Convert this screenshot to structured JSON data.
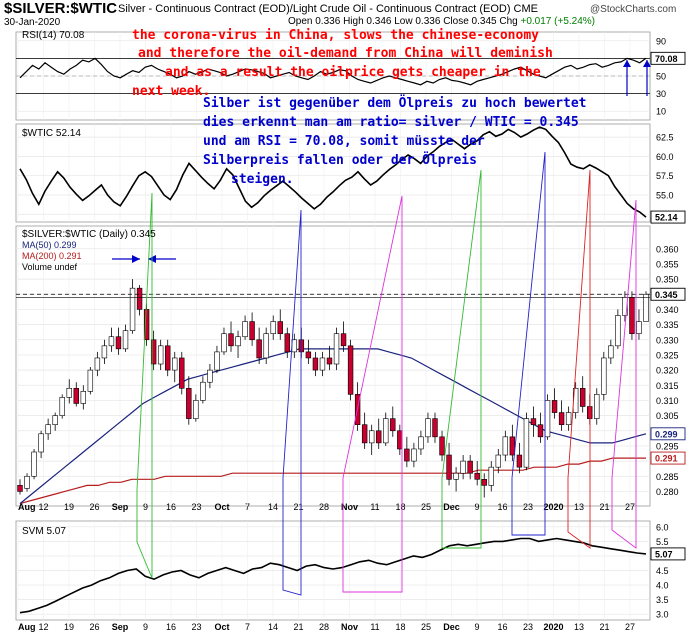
{
  "header": {
    "symbol": "$SILVER:$WTIC",
    "description": "Silver - Continuous Contract (EOD)/Light Crude Oil - Continuous Contract (EOD)  CME",
    "date": "30-Jan-2020",
    "open_label": "Open",
    "open": "0.336",
    "high_label": "High",
    "high": "0.346",
    "low_label": "Low",
    "low": "0.336",
    "close_label": "Close",
    "close": "0.345",
    "chg_label": "Chg",
    "chg": "+0.017 (+5.24%)",
    "chg_arrow": "▲",
    "brand": "@StockCharts.com"
  },
  "annotations": {
    "red": [
      "the corona-virus in China, slows the chinese-economy",
      "and therefore the oil-demand from China will deminish",
      "and as a result the oilprice gets cheaper in the",
      "next week."
    ],
    "blue": [
      "Silber ist gegenüber dem Ölpreis zu hoch bewertet",
      "dies erkennt man am ratio= silver / WTIC = 0.345",
      "und am RSI = 70.08, somit müsste der",
      "Silberpreis fallen oder der Ölpreis",
      "steigen."
    ]
  },
  "colors": {
    "red_text": "#ff0000",
    "blue_text": "#0000cc",
    "up_candle": "#ffffff",
    "down_candle": "#c8002e",
    "ma50": "#1a237e",
    "ma200": "#b71c1c",
    "green_line": "#33bb33",
    "blue_line": "#2222cc",
    "magenta_line": "#dd33dd",
    "red_line": "#dd2222"
  },
  "chart_data": [
    {
      "type": "line",
      "name": "rsi-panel",
      "legend": "RSI(14) 70.08",
      "ylim": [
        0,
        100
      ],
      "ticks": [
        10,
        30,
        50,
        70,
        90
      ],
      "last_label": "70.08",
      "values": [
        48,
        55,
        62,
        58,
        65,
        60,
        55,
        52,
        58,
        62,
        68,
        66,
        70,
        63,
        55,
        50,
        48,
        52,
        56,
        54,
        60,
        62,
        58,
        55,
        52,
        48,
        50,
        55,
        52,
        54,
        58,
        56,
        54,
        50,
        52,
        55,
        58,
        57,
        55,
        53,
        48,
        50,
        52,
        54,
        50,
        48,
        46,
        50,
        55,
        52,
        54,
        57,
        56,
        50,
        46,
        44,
        42,
        45,
        48,
        50,
        48,
        46,
        44,
        42,
        40,
        44,
        42,
        46,
        48,
        45,
        44,
        42,
        40,
        44,
        46,
        48,
        50,
        52,
        55,
        58,
        60,
        56,
        52,
        50,
        48,
        52,
        56,
        60,
        62,
        58,
        60,
        63,
        64,
        60,
        62,
        65,
        66,
        70,
        68,
        65,
        70.08
      ]
    },
    {
      "type": "line",
      "name": "wtic-panel",
      "legend": "$WTIC 52.14",
      "ylim": [
        51.5,
        64.2
      ],
      "ticks": [
        52.5,
        55.0,
        57.5,
        60.0,
        62.5
      ],
      "last_label": "52.14",
      "values": [
        58.4,
        57.0,
        55.2,
        53.8,
        55.5,
        56.8,
        58.0,
        57.2,
        56.0,
        55.1,
        54.3,
        54.9,
        55.6,
        56.3,
        55.0,
        54.1,
        53.6,
        54.8,
        56.2,
        57.5,
        58.0,
        57.4,
        56.2,
        55.0,
        54.4,
        55.7,
        57.6,
        59.1,
        58.2,
        57.3,
        56.5,
        55.8,
        56.9,
        58.4,
        57.6,
        55.9,
        54.2,
        53.4,
        54.0,
        54.9,
        55.6,
        56.2,
        56.8,
        56.1,
        55.4,
        54.6,
        53.9,
        53.2,
        53.8,
        54.7,
        55.4,
        56.2,
        56.9,
        57.3,
        58.0,
        57.1,
        56.3,
        56.8,
        57.6,
        58.3,
        58.9,
        59.6,
        60.2,
        59.7,
        59.1,
        60.0,
        60.6,
        61.3,
        61.8,
        62.2,
        61.6,
        61.0,
        61.6,
        62.0,
        62.8,
        63.2,
        62.6,
        62.9,
        63.5,
        63.1,
        62.5,
        62.9,
        63.4,
        63.8,
        63.5,
        62.6,
        61.8,
        60.5,
        59.0,
        58.6,
        58.4,
        58.9,
        58.5,
        58.0,
        57.5,
        56.1,
        55.0,
        53.9,
        53.2,
        52.8,
        52.14
      ]
    },
    {
      "type": "candlestick",
      "name": "ratio-panel",
      "legend": [
        "$SILVER:$WTIC (Daily) 0.345",
        "MA(50) 0.299",
        "MA(200) 0.291",
        "Volume undef"
      ],
      "ylim": [
        0.2752,
        0.3675
      ],
      "ticks": [
        0.28,
        0.285,
        0.29,
        0.295,
        0.3,
        0.305,
        0.31,
        0.315,
        0.32,
        0.325,
        0.33,
        0.335,
        0.34,
        0.345,
        0.35,
        0.355,
        0.36
      ],
      "last_label": "0.345",
      "ma50_label": "0.299",
      "ma200_label": "0.291",
      "ohlc": [
        [
          0.282,
          0.284,
          0.279,
          0.28
        ],
        [
          0.281,
          0.286,
          0.28,
          0.285
        ],
        [
          0.285,
          0.294,
          0.284,
          0.293
        ],
        [
          0.293,
          0.3,
          0.291,
          0.299
        ],
        [
          0.299,
          0.304,
          0.297,
          0.302
        ],
        [
          0.302,
          0.306,
          0.3,
          0.305
        ],
        [
          0.305,
          0.312,
          0.304,
          0.311
        ],
        [
          0.311,
          0.317,
          0.309,
          0.314
        ],
        [
          0.314,
          0.316,
          0.308,
          0.309
        ],
        [
          0.309,
          0.315,
          0.307,
          0.313
        ],
        [
          0.313,
          0.321,
          0.312,
          0.32
        ],
        [
          0.32,
          0.326,
          0.318,
          0.324
        ],
        [
          0.324,
          0.33,
          0.322,
          0.328
        ],
        [
          0.328,
          0.334,
          0.326,
          0.331
        ],
        [
          0.331,
          0.334,
          0.325,
          0.327
        ],
        [
          0.327,
          0.335,
          0.326,
          0.333
        ],
        [
          0.333,
          0.35,
          0.332,
          0.347
        ],
        [
          0.347,
          0.348,
          0.338,
          0.34
        ],
        [
          0.34,
          0.342,
          0.328,
          0.33
        ],
        [
          0.33,
          0.333,
          0.32,
          0.322
        ],
        [
          0.322,
          0.33,
          0.32,
          0.328
        ],
        [
          0.328,
          0.33,
          0.318,
          0.32
        ],
        [
          0.32,
          0.326,
          0.316,
          0.324
        ],
        [
          0.324,
          0.326,
          0.312,
          0.314
        ],
        [
          0.314,
          0.318,
          0.302,
          0.304
        ],
        [
          0.304,
          0.312,
          0.303,
          0.31
        ],
        [
          0.31,
          0.318,
          0.309,
          0.316
        ],
        [
          0.316,
          0.322,
          0.314,
          0.32
        ],
        [
          0.32,
          0.328,
          0.319,
          0.326
        ],
        [
          0.326,
          0.334,
          0.325,
          0.332
        ],
        [
          0.332,
          0.336,
          0.326,
          0.328
        ],
        [
          0.328,
          0.333,
          0.324,
          0.331
        ],
        [
          0.331,
          0.338,
          0.33,
          0.336
        ],
        [
          0.336,
          0.339,
          0.328,
          0.33
        ],
        [
          0.33,
          0.334,
          0.322,
          0.324
        ],
        [
          0.324,
          0.334,
          0.322,
          0.332
        ],
        [
          0.332,
          0.338,
          0.33,
          0.336
        ],
        [
          0.336,
          0.34,
          0.33,
          0.332
        ],
        [
          0.332,
          0.334,
          0.324,
          0.326
        ],
        [
          0.326,
          0.332,
          0.324,
          0.33
        ],
        [
          0.33,
          0.334,
          0.324,
          0.326
        ],
        [
          0.326,
          0.33,
          0.322,
          0.324
        ],
        [
          0.324,
          0.326,
          0.318,
          0.32
        ],
        [
          0.32,
          0.326,
          0.318,
          0.324
        ],
        [
          0.324,
          0.328,
          0.32,
          0.322
        ],
        [
          0.322,
          0.334,
          0.32,
          0.332
        ],
        [
          0.332,
          0.336,
          0.326,
          0.328
        ],
        [
          0.328,
          0.33,
          0.31,
          0.312
        ],
        [
          0.312,
          0.316,
          0.3,
          0.302
        ],
        [
          0.302,
          0.306,
          0.294,
          0.296
        ],
        [
          0.296,
          0.302,
          0.292,
          0.3
        ],
        [
          0.3,
          0.304,
          0.294,
          0.296
        ],
        [
          0.296,
          0.306,
          0.295,
          0.304
        ],
        [
          0.304,
          0.308,
          0.298,
          0.3
        ],
        [
          0.3,
          0.302,
          0.292,
          0.294
        ],
        [
          0.294,
          0.298,
          0.288,
          0.29
        ],
        [
          0.29,
          0.296,
          0.288,
          0.294
        ],
        [
          0.294,
          0.3,
          0.292,
          0.298
        ],
        [
          0.298,
          0.306,
          0.296,
          0.304
        ],
        [
          0.304,
          0.306,
          0.296,
          0.298
        ],
        [
          0.298,
          0.3,
          0.29,
          0.292
        ],
        [
          0.292,
          0.296,
          0.282,
          0.284
        ],
        [
          0.284,
          0.288,
          0.28,
          0.286
        ],
        [
          0.286,
          0.292,
          0.284,
          0.29
        ],
        [
          0.29,
          0.292,
          0.284,
          0.286
        ],
        [
          0.286,
          0.29,
          0.282,
          0.284
        ],
        [
          0.284,
          0.286,
          0.278,
          0.282
        ],
        [
          0.282,
          0.29,
          0.28,
          0.288
        ],
        [
          0.288,
          0.294,
          0.286,
          0.292
        ],
        [
          0.292,
          0.3,
          0.29,
          0.298
        ],
        [
          0.298,
          0.302,
          0.29,
          0.292
        ],
        [
          0.292,
          0.296,
          0.286,
          0.288
        ],
        [
          0.288,
          0.306,
          0.287,
          0.304
        ],
        [
          0.304,
          0.308,
          0.298,
          0.302
        ],
        [
          0.302,
          0.306,
          0.296,
          0.298
        ],
        [
          0.298,
          0.312,
          0.297,
          0.31
        ],
        [
          0.31,
          0.314,
          0.304,
          0.306
        ],
        [
          0.306,
          0.31,
          0.3,
          0.302
        ],
        [
          0.302,
          0.308,
          0.3,
          0.306
        ],
        [
          0.306,
          0.316,
          0.304,
          0.314
        ],
        [
          0.314,
          0.318,
          0.306,
          0.308
        ],
        [
          0.308,
          0.312,
          0.302,
          0.304
        ],
        [
          0.304,
          0.314,
          0.302,
          0.312
        ],
        [
          0.312,
          0.326,
          0.31,
          0.324
        ],
        [
          0.324,
          0.33,
          0.322,
          0.328
        ],
        [
          0.328,
          0.34,
          0.327,
          0.338
        ],
        [
          0.338,
          0.346,
          0.336,
          0.344
        ],
        [
          0.344,
          0.346,
          0.33,
          0.332
        ],
        [
          0.332,
          0.34,
          0.33,
          0.336
        ],
        [
          0.336,
          0.346,
          0.336,
          0.345
        ]
      ],
      "ma50": [
        0.276,
        0.279,
        0.282,
        0.285,
        0.288,
        0.291,
        0.294,
        0.297,
        0.3,
        0.303,
        0.306,
        0.309,
        0.311,
        0.313,
        0.315,
        0.317,
        0.318,
        0.319,
        0.32,
        0.321,
        0.322,
        0.323,
        0.324,
        0.325,
        0.326,
        0.327,
        0.327,
        0.327,
        0.327,
        0.327,
        0.327,
        0.327,
        0.327,
        0.326,
        0.325,
        0.324,
        0.322,
        0.32,
        0.318,
        0.316,
        0.314,
        0.312,
        0.31,
        0.308,
        0.306,
        0.304,
        0.302,
        0.3,
        0.299,
        0.298,
        0.297,
        0.296,
        0.296,
        0.296,
        0.297,
        0.298,
        0.299
      ],
      "ma200": [
        0.276,
        0.277,
        0.278,
        0.279,
        0.28,
        0.281,
        0.282,
        0.282,
        0.283,
        0.283,
        0.284,
        0.284,
        0.284,
        0.285,
        0.285,
        0.285,
        0.285,
        0.285,
        0.285,
        0.286,
        0.286,
        0.286,
        0.286,
        0.286,
        0.286,
        0.286,
        0.286,
        0.286,
        0.286,
        0.286,
        0.286,
        0.286,
        0.286,
        0.286,
        0.286,
        0.286,
        0.286,
        0.286,
        0.286,
        0.286,
        0.286,
        0.287,
        0.287,
        0.287,
        0.287,
        0.287,
        0.288,
        0.288,
        0.288,
        0.289,
        0.289,
        0.29,
        0.29,
        0.291,
        0.291,
        0.291,
        0.291
      ]
    },
    {
      "type": "line",
      "name": "svm-panel",
      "legend": "SVM 5.07",
      "ylim": [
        2.8,
        6.2
      ],
      "ticks": [
        3.0,
        3.5,
        4.0,
        4.5,
        5.0,
        5.5,
        6.0
      ],
      "last_label": "5.07",
      "values": [
        3.05,
        3.1,
        3.2,
        3.3,
        3.45,
        3.6,
        3.75,
        3.9,
        4.0,
        4.15,
        4.25,
        4.4,
        4.5,
        4.55,
        4.3,
        4.2,
        4.35,
        4.45,
        4.5,
        4.35,
        4.25,
        4.4,
        4.5,
        4.6,
        4.5,
        4.4,
        4.55,
        4.6,
        4.75,
        4.7,
        4.6,
        4.5,
        4.65,
        4.7,
        4.6,
        4.55,
        4.6,
        4.7,
        4.8,
        4.85,
        4.75,
        4.7,
        4.8,
        4.9,
        5.0,
        4.95,
        5.05,
        5.2,
        5.35,
        5.4,
        5.35,
        5.4,
        5.45,
        5.5,
        5.5,
        5.55,
        5.6,
        5.6,
        5.5,
        5.55,
        5.6,
        5.55,
        5.5,
        5.45,
        5.35,
        5.3,
        5.25,
        5.2,
        5.15,
        5.1,
        5.07
      ]
    }
  ],
  "x_axis": {
    "labels": [
      "Aug",
      "12",
      "19",
      "26",
      "Sep",
      "9",
      "16",
      "23",
      "Oct",
      "7",
      "14",
      "21",
      "28",
      "Nov",
      "11",
      "18",
      "25",
      "Dec",
      "9",
      "16",
      "23",
      "2020",
      "13",
      "21",
      "27"
    ],
    "bold": [
      "Aug",
      "Sep",
      "Oct",
      "Nov",
      "Dec",
      "2020"
    ]
  }
}
